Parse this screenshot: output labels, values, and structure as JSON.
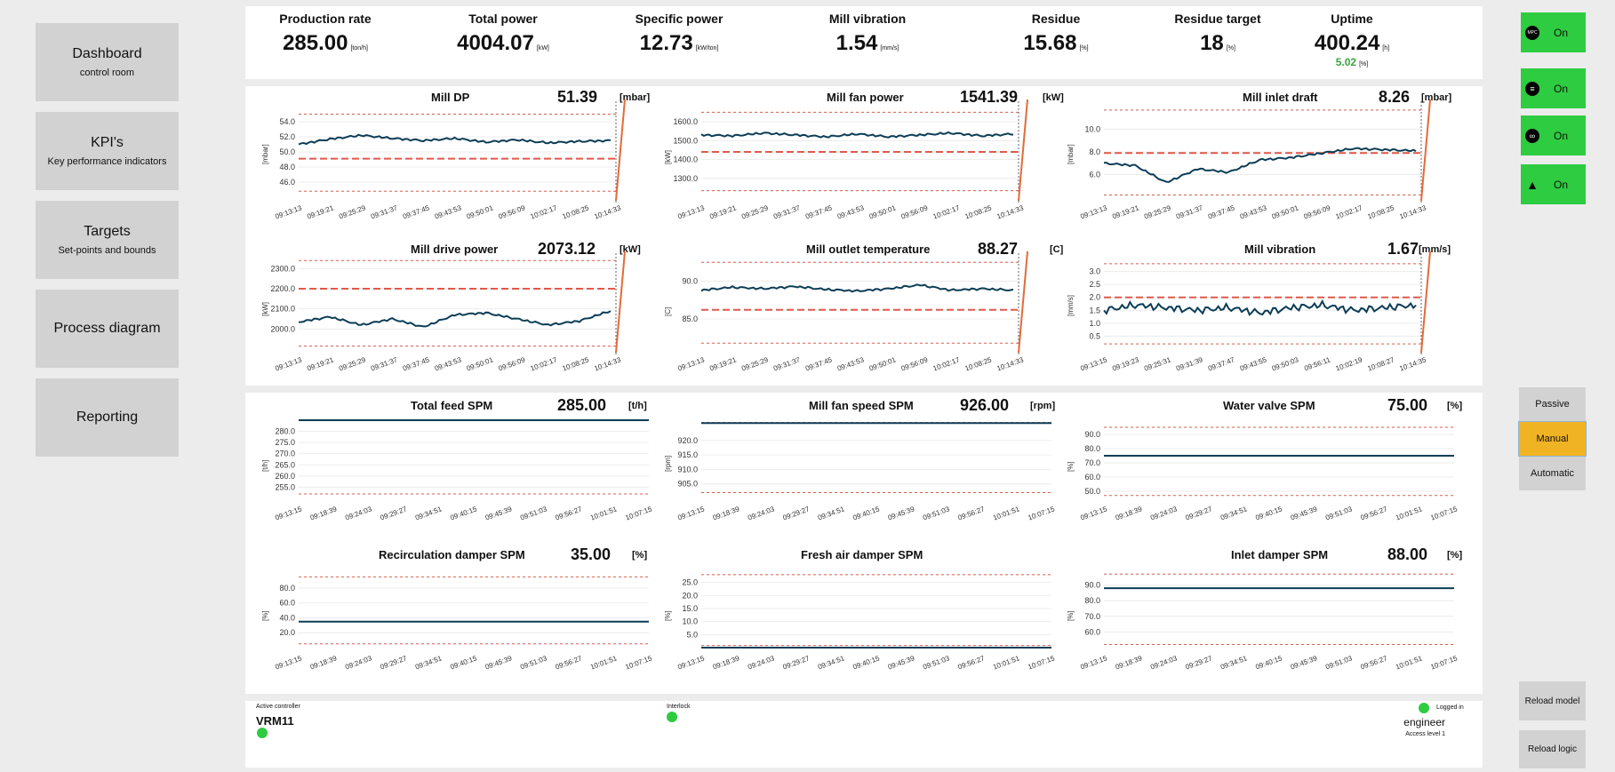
{
  "nav": [
    {
      "title": "Dashboard",
      "sub": "control room"
    },
    {
      "title": "KPI's",
      "sub": "Key performance indicators"
    },
    {
      "title": "Targets",
      "sub": "Set-points and bounds"
    },
    {
      "title": "Process diagram",
      "sub": ""
    },
    {
      "title": "Reporting",
      "sub": ""
    }
  ],
  "kpis": [
    {
      "label": "Production rate",
      "value": "285.00",
      "unit": "[ton/h]"
    },
    {
      "label": "Total power",
      "value": "4004.07",
      "unit": "[kW]"
    },
    {
      "label": "Specific power",
      "value": "12.73",
      "unit": "[kW/ton]"
    },
    {
      "label": "Mill vibration",
      "value": "1.54",
      "unit": "[mm/s]"
    },
    {
      "label": "Residue",
      "value": "15.68",
      "unit": "[%]"
    },
    {
      "label": "Residue target",
      "value": "18",
      "unit": "[%]"
    },
    {
      "label": "Uptime",
      "value": "400.24",
      "unit": "[h]",
      "sub": "5.02",
      "sub_unit": "[%]"
    }
  ],
  "charts": [
    {
      "title": "Mill DP",
      "value": "51.39",
      "unit": "[mbar]",
      "ylabel": "[mbar]",
      "yticks": [
        "54.0",
        "52.0",
        "50.0",
        "48.0",
        "46.0"
      ],
      "xticks": [
        "09:13:13",
        "09:19:21",
        "09:25:29",
        "09:31:37",
        "09:37:45",
        "09:43:53",
        "09:50:01",
        "09:56:09",
        "10:02:17",
        "10:08:25",
        "10:14:33"
      ]
    },
    {
      "title": "Mill fan power",
      "value": "1541.39",
      "unit": "[kW]",
      "ylabel": "[kW]",
      "yticks": [
        "1600.0",
        "1500.0",
        "1400.0",
        "1300.0"
      ],
      "xticks": [
        "09:13:13",
        "09:19:21",
        "09:25:29",
        "09:31:37",
        "09:37:45",
        "09:43:53",
        "09:50:01",
        "09:56:09",
        "10:02:17",
        "10:08:25",
        "10:14:33"
      ]
    },
    {
      "title": "Mill inlet draft",
      "value": "8.26",
      "unit": "[mbar]",
      "ylabel": "[mbar]",
      "yticks": [
        "10.0",
        "8.0",
        "6.0"
      ],
      "xticks": [
        "09:13:13",
        "09:19:21",
        "09:25:29",
        "09:31:37",
        "09:37:45",
        "09:43:53",
        "09:50:01",
        "09:56:09",
        "10:02:17",
        "10:08:25",
        "10:14:33"
      ]
    },
    {
      "title": "Mill drive power",
      "value": "2073.12",
      "unit": "[kW]",
      "ylabel": "[kW]",
      "yticks": [
        "2300.0",
        "2200.0",
        "2100.0",
        "2000.0"
      ],
      "xticks": [
        "09:13:13",
        "09:19:21",
        "09:25:29",
        "09:31:37",
        "09:37:45",
        "09:43:53",
        "09:50:01",
        "09:56:09",
        "10:02:17",
        "10:08:25",
        "10:14:33"
      ]
    },
    {
      "title": "Mill outlet temperature",
      "value": "88.27",
      "unit": "[C]",
      "ylabel": "[C]",
      "yticks": [
        "90.0",
        "85.0"
      ],
      "xticks": [
        "09:13:13",
        "09:19:21",
        "09:25:29",
        "09:31:37",
        "09:37:45",
        "09:43:53",
        "09:50:01",
        "09:56:09",
        "10:02:17",
        "10:08:25",
        "10:14:33"
      ]
    },
    {
      "title": "Mill vibration",
      "value": "1.67",
      "unit": "[mm/s]",
      "ylabel": "[mm/s]",
      "yticks": [
        "3.0",
        "2.5",
        "2.0",
        "1.5",
        "1.0",
        "0.5"
      ],
      "xticks": [
        "09:13:15",
        "09:19:23",
        "09:25:31",
        "09:31:39",
        "09:37:47",
        "09:43:55",
        "09:50:03",
        "09:56:11",
        "10:02:19",
        "10:08:27",
        "10:14:35"
      ]
    },
    {
      "title": "Total feed SPM",
      "value": "285.00",
      "unit": "[t/h]",
      "ylabel": "[t/h]",
      "yticks": [
        "280.0",
        "275.0",
        "270.0",
        "265.0",
        "260.0",
        "255.0"
      ],
      "xticks": [
        "09:13:15",
        "09:18:39",
        "09:24:03",
        "09:29:27",
        "09:34:51",
        "09:40:15",
        "09:45:39",
        "09:51:03",
        "09:56:27",
        "10:01:51",
        "10:07:15"
      ]
    },
    {
      "title": "Mill fan speed SPM",
      "value": "926.00",
      "unit": "[rpm]",
      "ylabel": "[rpm]",
      "yticks": [
        "920.0",
        "915.0",
        "910.0",
        "905.0"
      ],
      "xticks": [
        "09:13:15",
        "09:18:39",
        "09:24:03",
        "09:29:27",
        "09:34:51",
        "09:40:15",
        "09:45:39",
        "09:51:03",
        "09:56:27",
        "10:01:51",
        "10:07:15"
      ]
    },
    {
      "title": "Water valve SPM",
      "value": "75.00",
      "unit": "[%]",
      "ylabel": "[%]",
      "yticks": [
        "90.0",
        "80.0",
        "70.0",
        "60.0",
        "50.0"
      ],
      "xticks": [
        "09:13:15",
        "09:18:39",
        "09:24:03",
        "09:29:27",
        "09:34:51",
        "09:40:15",
        "09:45:39",
        "09:51:03",
        "09:56:27",
        "10:01:51",
        "10:07:15"
      ]
    },
    {
      "title": "Recirculation damper SPM",
      "value": "35.00",
      "unit": "[%]",
      "ylabel": "[%]",
      "yticks": [
        "80.0",
        "60.0",
        "40.0",
        "20.0"
      ],
      "xticks": [
        "09:13:15",
        "09:18:39",
        "09:24:03",
        "09:29:27",
        "09:34:51",
        "09:40:15",
        "09:45:39",
        "09:51:03",
        "09:56:27",
        "10:01:51",
        "10:07:15"
      ]
    },
    {
      "title": "Fresh air damper SPM",
      "value": "",
      "unit": "",
      "ylabel": "[%]",
      "yticks": [
        "25.0",
        "20.0",
        "15.0",
        "10.0",
        "5.0"
      ],
      "xticks": [
        "09:13:15",
        "09:18:39",
        "09:24:03",
        "09:29:27",
        "09:34:51",
        "09:40:15",
        "09:45:39",
        "09:51:03",
        "09:56:27",
        "10:01:51",
        "10:07:15"
      ]
    },
    {
      "title": "Inlet damper SPM",
      "value": "88.00",
      "unit": "[%]",
      "ylabel": "[%]",
      "yticks": [
        "90.0",
        "80.0",
        "70.0",
        "60.0"
      ],
      "xticks": [
        "09:13:15",
        "09:18:39",
        "09:24:03",
        "09:29:27",
        "09:34:51",
        "09:40:15",
        "09:45:39",
        "09:51:03",
        "09:56:27",
        "10:01:51",
        "10:07:15"
      ]
    }
  ],
  "chart_data": [
    {
      "type": "line",
      "title": "Mill DP",
      "ylim": [
        44.0,
        56.0
      ],
      "limits_upper": [
        55.0,
        49.1
      ],
      "limit_lower": 44.8,
      "y_at_ticks": [
        51.0,
        51.7,
        52.2,
        51.8,
        51.5,
        51.8,
        51.3,
        51.6,
        51.2,
        51.4,
        51.5
      ]
    },
    {
      "type": "line",
      "title": "Mill fan power",
      "ylim": [
        1200,
        1680
      ],
      "limits_upper": [
        1650,
        1440
      ],
      "limit_lower": 1235,
      "y_at_ticks": [
        1530,
        1525,
        1540,
        1530,
        1520,
        1535,
        1520,
        1530,
        1540,
        1525,
        1535
      ]
    },
    {
      "type": "line",
      "title": "Mill inlet draft",
      "ylim": [
        4.0,
        12.0
      ],
      "limits_upper": [
        11.7,
        7.9
      ],
      "limit_lower": 4.2,
      "y_at_ticks": [
        7.0,
        6.8,
        5.3,
        6.5,
        6.2,
        7.3,
        7.5,
        7.9,
        8.3,
        8.2,
        8.1
      ]
    },
    {
      "type": "line",
      "title": "Mill drive power",
      "ylim": [
        1900,
        2350
      ],
      "limits_upper": [
        2340,
        2200
      ],
      "limit_lower": 1915,
      "y_at_ticks": [
        2035,
        2060,
        2020,
        2050,
        2010,
        2070,
        2080,
        2050,
        2020,
        2040,
        2090
      ]
    },
    {
      "type": "line",
      "title": "Mill outlet temperature",
      "ylim": [
        81.0,
        93.0
      ],
      "limits_upper": [
        92.5,
        86.2
      ],
      "limit_lower": 81.8,
      "y_at_ticks": [
        88.8,
        89.2,
        89.0,
        89.3,
        88.9,
        88.7,
        89.0,
        89.5,
        88.8,
        89.0,
        88.8
      ]
    },
    {
      "type": "line",
      "title": "Mill vibration",
      "ylim": [
        0.0,
        3.5
      ],
      "limits_upper": [
        3.3,
        2.0
      ],
      "limit_lower": 0.2,
      "y_at_ticks": [
        1.5,
        1.7,
        1.6,
        1.5,
        1.6,
        1.4,
        1.6,
        1.7,
        1.5,
        1.6,
        1.7
      ]
    },
    {
      "type": "line",
      "title": "Total feed SPM",
      "ylim": [
        250,
        285
      ],
      "limits_upper": [
        285.0
      ],
      "limit_lower": 252.0,
      "y_at_ticks": [
        285,
        285,
        285,
        285,
        285,
        285,
        285,
        285,
        285,
        285,
        285
      ]
    },
    {
      "type": "line",
      "title": "Mill fan speed SPM",
      "ylim": [
        900,
        927
      ],
      "limits_upper": [
        926.2
      ],
      "limit_lower": 902.0,
      "y_at_ticks": [
        926,
        926,
        926,
        926,
        926,
        926,
        926,
        926,
        926,
        926,
        926
      ]
    },
    {
      "type": "line",
      "title": "Water valve SPM",
      "ylim": [
        45,
        100
      ],
      "limits_upper": [
        95.0
      ],
      "limit_lower": 47.0,
      "y_at_ticks": [
        75,
        75,
        75,
        75,
        75,
        75,
        75,
        75,
        75,
        75,
        75
      ]
    },
    {
      "type": "line",
      "title": "Recirculation damper SPM",
      "ylim": [
        0,
        105
      ],
      "limits_upper": [
        95.0
      ],
      "limit_lower": 5.0,
      "y_at_ticks": [
        35,
        35,
        35,
        35,
        35,
        35,
        35,
        35,
        35,
        35,
        35
      ]
    },
    {
      "type": "line",
      "title": "Fresh air damper SPM",
      "ylim": [
        0,
        30
      ],
      "limits_upper": [
        28.0
      ],
      "limit_lower": 0.8,
      "y_at_ticks": [
        0,
        0,
        0,
        0,
        0,
        0,
        0,
        0,
        0,
        0,
        0
      ]
    },
    {
      "type": "line",
      "title": "Inlet damper SPM",
      "ylim": [
        50,
        100
      ],
      "limits_upper": [
        97.0
      ],
      "limit_lower": 52.0,
      "y_at_ticks": [
        88,
        88,
        88,
        88,
        88,
        88,
        88,
        88,
        88,
        88,
        88
      ]
    }
  ],
  "status_buttons": [
    {
      "icon": "mpc-icon",
      "glyph": "MPC",
      "label": "On"
    },
    {
      "icon": "database-icon",
      "glyph": "≡",
      "label": "On"
    },
    {
      "icon": "link-icon",
      "glyph": "∞",
      "label": "On"
    },
    {
      "icon": "warning-icon",
      "glyph": "▲",
      "label": "On"
    }
  ],
  "modes": {
    "passive": "Passive",
    "manual": "Manual",
    "automatic": "Automatic",
    "active": "Manual"
  },
  "reload": {
    "model": "Reload model",
    "logic": "Reload logic"
  },
  "footer": {
    "active_controller_label": "Active controller",
    "active_controller": "VRM11",
    "interlock_label": "Interlock",
    "logged_in_label": "Logged in",
    "user": "engineer",
    "access_level": "Access level 1"
  },
  "colors": {
    "status_on": "#2ecc40",
    "manual_active": "#f0b323",
    "series": "#0c3d56",
    "limit": "#e05a4a",
    "cursor": "#e26b3a"
  }
}
